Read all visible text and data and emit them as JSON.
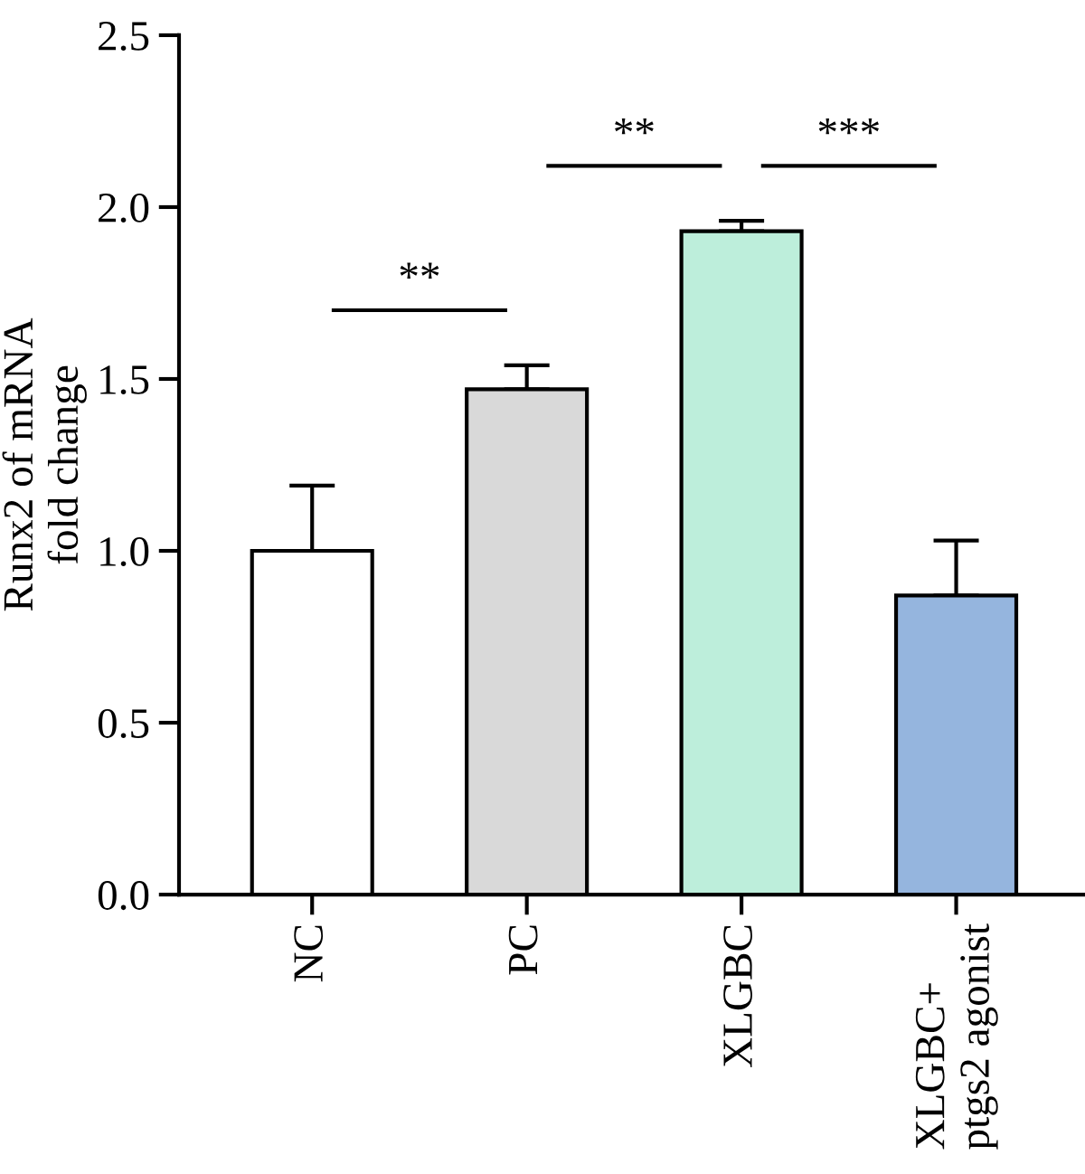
{
  "chart_data": {
    "type": "bar",
    "ylabel": "Runx2 of mRNA\nfold change",
    "categories": [
      "NC",
      "PC",
      "XLGBC",
      "XLGBC+\nptgs2 agonist"
    ],
    "values": [
      1.0,
      1.47,
      1.93,
      0.87
    ],
    "errors": [
      [
        1.0,
        1.19
      ],
      [
        1.47,
        1.54
      ],
      [
        1.93,
        1.96
      ],
      [
        0.87,
        1.03
      ]
    ],
    "colors": [
      "#ffffff",
      "#d9d9d9",
      "#bdeedb",
      "#95b5de"
    ],
    "ylim": [
      0,
      2.5
    ],
    "yticks": [
      {
        "value": 0,
        "label": "0.0"
      },
      0.5,
      {
        "value": 1,
        "label": "1.0"
      },
      1.5,
      {
        "value": 2,
        "label": "2.0"
      },
      2.5
    ],
    "grid": false,
    "legend": false,
    "annotations": [
      "**",
      "**",
      "***"
    ]
  }
}
